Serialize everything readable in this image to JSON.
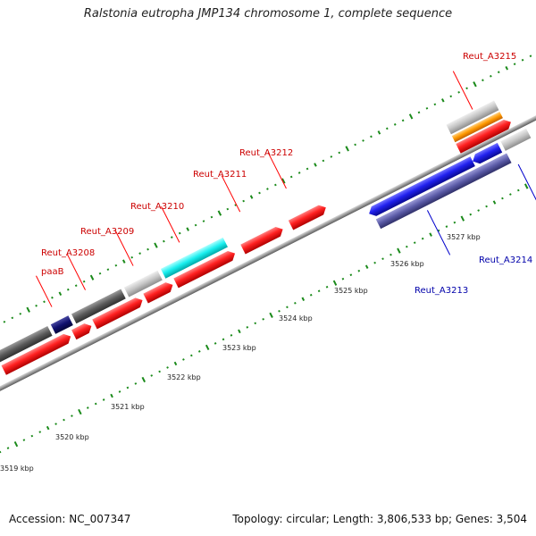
{
  "title": "Ralstonia eutropha JMP134 chromosome 1, complete sequence",
  "footer": {
    "accession": "Accession: NC_007347",
    "stats": "Topology: circular; Length: 3,806,533 bp; Genes: 3,504"
  },
  "scale_labels": [
    "3519 kbp",
    "3520 kbp",
    "3521 kbp",
    "3522 kbp",
    "3523 kbp",
    "3524 kbp",
    "3525 kbp",
    "3526 kbp",
    "3527 kbp"
  ],
  "gene_labels": {
    "Reut_A3215": "Reut_A3215",
    "Reut_A3212": "Reut_A3212",
    "Reut_A3211": "Reut_A3211",
    "Reut_A3210": "Reut_A3210",
    "Reut_A3209": "Reut_A3209",
    "Reut_A3208": "Reut_A3208",
    "paaB": "paaB",
    "Reut_A3213": "Reut_A3213",
    "Reut_A3214": "Reut_A3214"
  },
  "colors": {
    "forward_label": "#cc0000",
    "reverse_label": "#0000aa",
    "red": "#ff1a1a",
    "blue": "#1a1aee",
    "navy": "#0d0d6e",
    "darkgray": "#5a5a5a",
    "lightgray": "#c8c8c8",
    "cyan": "#19f0f0",
    "orange": "#ff9900",
    "slate": "#5a5aa6",
    "lavender": "#8c8ce0",
    "tick": "#1a8a1a",
    "backbone": "#9a9a9a"
  }
}
